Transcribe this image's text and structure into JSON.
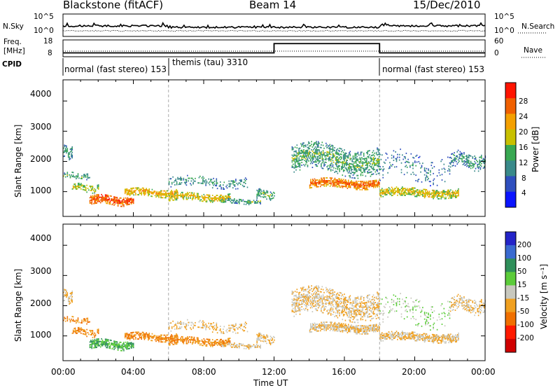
{
  "header": {
    "radar": "Blackstone (fitACF)",
    "beam": "Beam 14",
    "date": "15/Dec/2010"
  },
  "sky_panel": {
    "left_label": "N.Sky",
    "left_ticks": [
      "10^5",
      "10^0"
    ],
    "right_ticks": [
      "10^5",
      "10^0"
    ],
    "right_label": "N.Search"
  },
  "freq_panel": {
    "left_label_line1": "Freq.",
    "left_label_line2": "[MHz]",
    "left_ticks": [
      "18",
      "8"
    ],
    "right_ticks": [
      "60",
      "0"
    ],
    "right_label": "Nave",
    "freq_steps": [
      [
        0,
        10.3
      ],
      [
        12,
        15.8
      ],
      [
        18,
        10.3
      ],
      [
        24,
        10.3
      ]
    ],
    "nave_steps": [
      [
        0,
        20
      ],
      [
        12,
        20
      ],
      [
        18,
        20
      ],
      [
        24,
        20
      ]
    ]
  },
  "cpid": {
    "label": "CPID",
    "segments": [
      {
        "label": "normal (fast stereo) 153",
        "start": 0
      },
      {
        "label": "themis (tau) 3310",
        "start": 6
      },
      {
        "label": "normal (fast stereo) 153",
        "start": 18
      }
    ]
  },
  "power_panel": {
    "ylabel": "Slant Range [km]",
    "yticks": [
      "4000",
      "3000",
      "2000",
      "1000"
    ],
    "cbar_label": "Power [dB]",
    "cbar_ticks": [
      "28",
      "24",
      "20",
      "16",
      "12",
      "8",
      "4"
    ],
    "colors": [
      "#0a14ff",
      "#2f4fbe",
      "#3a8a8a",
      "#38a852",
      "#c8c000",
      "#f4a000",
      "#f06000",
      "#ff1400"
    ]
  },
  "velocity_panel": {
    "ylabel": "Slant Range [km]",
    "yticks": [
      "4000",
      "3000",
      "2000",
      "1000"
    ],
    "cbar_label": "Velocity [m s⁻¹]",
    "cbar_ticks": [
      "200",
      "100",
      "50",
      "15",
      "-15",
      "-50",
      "-100",
      "-200"
    ],
    "colors": [
      "#2424c8",
      "#3a6ad0",
      "#2f8f5a",
      "#5ccc3a",
      "#c8c8be",
      "#f0a020",
      "#f07000",
      "#ff1a00",
      "#d00000"
    ]
  },
  "xaxis": {
    "ticks": [
      "00:00",
      "04:00",
      "08:00",
      "12:00",
      "16:00",
      "20:00",
      "00:00"
    ],
    "label": "Time UT"
  },
  "chart_data": {
    "type": "heatmap",
    "title": "Blackstone (fitACF)  Beam 14  15/Dec/2010",
    "xlabel": "Time UT",
    "ylabel": "Slant Range [km]",
    "xlim": [
      0,
      24
    ],
    "ylim": [
      180,
      4700
    ],
    "dashed_lines_hours": [
      6,
      18
    ],
    "scatter_regions": [
      {
        "t0": 0.0,
        "t1": 0.5,
        "r_center": 2300,
        "r_width": 400,
        "density": 0.7,
        "power": 8,
        "velocity": -15
      },
      {
        "t0": 0.0,
        "t1": 1.5,
        "r_center": 1500,
        "r_width": 200,
        "density": 0.6,
        "power": 10,
        "velocity": -50
      },
      {
        "t0": 0.5,
        "t1": 2.0,
        "r_center": 1100,
        "r_width": 250,
        "density": 0.7,
        "power": 14,
        "velocity": -50
      },
      {
        "t0": 1.5,
        "t1": 4.0,
        "r_center": 700,
        "r_width": 300,
        "density": 0.95,
        "power": 24,
        "velocity": 50
      },
      {
        "t0": 3.5,
        "t1": 6.5,
        "r_center": 950,
        "r_width": 250,
        "density": 0.9,
        "power": 18,
        "velocity": -50
      },
      {
        "t0": 6.0,
        "t1": 9.5,
        "r_center": 800,
        "r_width": 250,
        "density": 0.85,
        "power": 16,
        "velocity": -50
      },
      {
        "t0": 9.0,
        "t1": 11.2,
        "r_center": 650,
        "r_width": 150,
        "density": 0.7,
        "power": 10,
        "velocity": -15
      },
      {
        "t0": 6.0,
        "t1": 10.5,
        "r_center": 1300,
        "r_width": 350,
        "density": 0.35,
        "power": 8,
        "velocity": -15
      },
      {
        "t0": 11.0,
        "t1": 12.0,
        "r_center": 900,
        "r_width": 300,
        "density": 0.6,
        "power": 10,
        "velocity": -15
      },
      {
        "t0": 13.0,
        "t1": 18.0,
        "r_center": 2050,
        "r_width": 900,
        "density": 0.6,
        "power": 10,
        "velocity": -15
      },
      {
        "t0": 14.0,
        "t1": 18.0,
        "r_center": 1250,
        "r_width": 300,
        "density": 0.95,
        "power": 22,
        "velocity": -15
      },
      {
        "t0": 18.0,
        "t1": 22.5,
        "r_center": 950,
        "r_width": 300,
        "density": 0.9,
        "power": 16,
        "velocity": -15
      },
      {
        "t0": 18.0,
        "t1": 22.0,
        "r_center": 1800,
        "r_width": 900,
        "density": 0.15,
        "power": 6,
        "velocity": 15
      },
      {
        "t0": 22.0,
        "t1": 24.0,
        "r_center": 2000,
        "r_width": 500,
        "density": 0.6,
        "power": 8,
        "velocity": -15
      }
    ]
  }
}
